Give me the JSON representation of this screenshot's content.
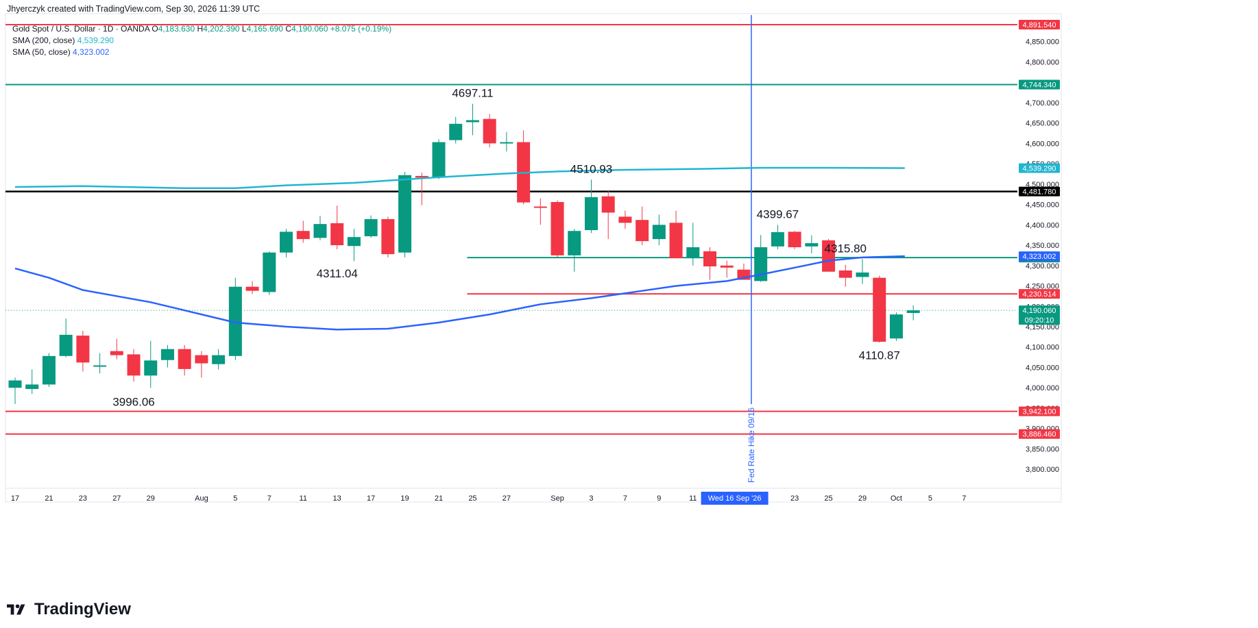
{
  "header": {
    "text": "Jhyerczyk created with TradingView.com, Sep 30, 2026 11:39 UTC"
  },
  "legend": {
    "symbol": "Gold Spot / U.S. Dollar · 1D · OANDA",
    "o_label": "O",
    "o": "4,183.630",
    "h_label": "H",
    "h": "4,202.390",
    "l_label": "L",
    "l": "4,165.690",
    "c_label": "C",
    "c": "4,190.060",
    "change": "+8.075 (+0.19%)",
    "sma200_label": "SMA (200, close)",
    "sma200_value": "4,539.290",
    "sma50_label": "SMA (50, close)",
    "sma50_value": "4,323.002"
  },
  "brand": {
    "name": "TradingView"
  },
  "colors": {
    "up": "#089981",
    "down": "#f23645",
    "sma200": "#22b5d0",
    "sma50": "#2962ff",
    "fed_line": "#2962ff",
    "red_level": "#f23645",
    "green_level": "#089981",
    "black_level": "#000000"
  },
  "chart_data": {
    "type": "candlestick",
    "symbol": "XAUUSD",
    "timeframe": "1D",
    "ylim": [
      3770,
      4915
    ],
    "y_ticks": [
      3800,
      3850,
      3900,
      3950,
      4000,
      4050,
      4100,
      4150,
      4200,
      4250,
      4300,
      4350,
      4400,
      4450,
      4500,
      4550,
      4600,
      4650,
      4700,
      4750,
      4800,
      4850
    ],
    "y_tick_labels": [
      "3,800.000",
      "3,850.000",
      "3,900.000",
      "3,950.000",
      "4,000.000",
      "4,050.000",
      "4,100.000",
      "4,150.000",
      "4,200.000",
      "4,250.000",
      "4,300.000",
      "4,350.000",
      "4,400.000",
      "4,450.000",
      "4,500.000",
      "4,550.000",
      "4,600.000",
      "4,650.000",
      "4,700.000",
      "4,750.000",
      "4,800.000",
      "4,850.000"
    ],
    "x_labels": [
      {
        "i": 0,
        "text": "17"
      },
      {
        "i": 2,
        "text": "21"
      },
      {
        "i": 4,
        "text": "23"
      },
      {
        "i": 6,
        "text": "27"
      },
      {
        "i": 8,
        "text": "29"
      },
      {
        "i": 11,
        "text": "Aug"
      },
      {
        "i": 13,
        "text": "5"
      },
      {
        "i": 15,
        "text": "7"
      },
      {
        "i": 17,
        "text": "11"
      },
      {
        "i": 19,
        "text": "13"
      },
      {
        "i": 21,
        "text": "17"
      },
      {
        "i": 23,
        "text": "19"
      },
      {
        "i": 25,
        "text": "21"
      },
      {
        "i": 27,
        "text": "25"
      },
      {
        "i": 29,
        "text": "27"
      },
      {
        "i": 32,
        "text": "Sep"
      },
      {
        "i": 34,
        "text": "3"
      },
      {
        "i": 36,
        "text": "7"
      },
      {
        "i": 38,
        "text": "9"
      },
      {
        "i": 40,
        "text": "11"
      },
      {
        "i": 44,
        "text": "21"
      },
      {
        "i": 46,
        "text": "23"
      },
      {
        "i": 48,
        "text": "25"
      },
      {
        "i": 50,
        "text": "29"
      },
      {
        "i": 52,
        "text": "Oct"
      },
      {
        "i": 54,
        "text": "5"
      },
      {
        "i": 56,
        "text": "7"
      }
    ],
    "x_highlight": {
      "i": 42.5,
      "text": "Wed 16 Sep '26"
    },
    "candles": [
      {
        "o": 4000,
        "h": 4025,
        "l": 3960,
        "c": 4018
      },
      {
        "o": 3997,
        "h": 4045,
        "l": 3985,
        "c": 4008
      },
      {
        "o": 4008,
        "h": 4085,
        "l": 4002,
        "c": 4078
      },
      {
        "o": 4078,
        "h": 4170,
        "l": 4075,
        "c": 4130
      },
      {
        "o": 4128,
        "h": 4140,
        "l": 4040,
        "c": 4062
      },
      {
        "o": 4054,
        "h": 4085,
        "l": 4035,
        "c": 4055
      },
      {
        "o": 4090,
        "h": 4120,
        "l": 4070,
        "c": 4080
      },
      {
        "o": 4082,
        "h": 4095,
        "l": 4015,
        "c": 4030
      },
      {
        "o": 4030,
        "h": 4115,
        "l": 4000,
        "c": 4067
      },
      {
        "o": 4068,
        "h": 4105,
        "l": 4050,
        "c": 4095
      },
      {
        "o": 4095,
        "h": 4105,
        "l": 4030,
        "c": 4046
      },
      {
        "o": 4080,
        "h": 4090,
        "l": 4025,
        "c": 4060
      },
      {
        "o": 4058,
        "h": 4095,
        "l": 4045,
        "c": 4080
      },
      {
        "o": 4078,
        "h": 4270,
        "l": 4068,
        "c": 4248
      },
      {
        "o": 4248,
        "h": 4262,
        "l": 4230,
        "c": 4238
      },
      {
        "o": 4235,
        "h": 4335,
        "l": 4228,
        "c": 4332
      },
      {
        "o": 4332,
        "h": 4390,
        "l": 4320,
        "c": 4383
      },
      {
        "o": 4385,
        "h": 4410,
        "l": 4356,
        "c": 4365
      },
      {
        "o": 4368,
        "h": 4422,
        "l": 4362,
        "c": 4402
      },
      {
        "o": 4404,
        "h": 4447,
        "l": 4340,
        "c": 4350
      },
      {
        "o": 4348,
        "h": 4390,
        "l": 4311,
        "c": 4370
      },
      {
        "o": 4372,
        "h": 4423,
        "l": 4368,
        "c": 4414
      },
      {
        "o": 4414,
        "h": 4420,
        "l": 4320,
        "c": 4328
      },
      {
        "o": 4332,
        "h": 4530,
        "l": 4320,
        "c": 4522
      },
      {
        "o": 4520,
        "h": 4528,
        "l": 4448,
        "c": 4516
      },
      {
        "o": 4518,
        "h": 4610,
        "l": 4512,
        "c": 4603
      },
      {
        "o": 4608,
        "h": 4665,
        "l": 4600,
        "c": 4648
      },
      {
        "o": 4652,
        "h": 4697,
        "l": 4620,
        "c": 4657
      },
      {
        "o": 4660,
        "h": 4672,
        "l": 4590,
        "c": 4600
      },
      {
        "o": 4600,
        "h": 4628,
        "l": 4580,
        "c": 4603
      },
      {
        "o": 4603,
        "h": 4632,
        "l": 4450,
        "c": 4455
      },
      {
        "o": 4445,
        "h": 4465,
        "l": 4400,
        "c": 4442
      },
      {
        "o": 4456,
        "h": 4460,
        "l": 4320,
        "c": 4325
      },
      {
        "o": 4325,
        "h": 4390,
        "l": 4285,
        "c": 4385
      },
      {
        "o": 4387,
        "h": 4511,
        "l": 4380,
        "c": 4468
      },
      {
        "o": 4470,
        "h": 4485,
        "l": 4365,
        "c": 4430
      },
      {
        "o": 4420,
        "h": 4435,
        "l": 4390,
        "c": 4405
      },
      {
        "o": 4412,
        "h": 4445,
        "l": 4350,
        "c": 4360
      },
      {
        "o": 4365,
        "h": 4425,
        "l": 4350,
        "c": 4400
      },
      {
        "o": 4405,
        "h": 4435,
        "l": 4320,
        "c": 4318
      },
      {
        "o": 4318,
        "h": 4405,
        "l": 4300,
        "c": 4345
      },
      {
        "o": 4335,
        "h": 4345,
        "l": 4265,
        "c": 4298
      },
      {
        "o": 4300,
        "h": 4312,
        "l": 4270,
        "c": 4295
      },
      {
        "o": 4290,
        "h": 4305,
        "l": 4265,
        "c": 4265
      },
      {
        "o": 4262,
        "h": 4375,
        "l": 4260,
        "c": 4345
      },
      {
        "o": 4347,
        "h": 4400,
        "l": 4340,
        "c": 4382
      },
      {
        "o": 4383,
        "h": 4385,
        "l": 4340,
        "c": 4345
      },
      {
        "o": 4347,
        "h": 4374,
        "l": 4330,
        "c": 4355
      },
      {
        "o": 4362,
        "h": 4365,
        "l": 4290,
        "c": 4285
      },
      {
        "o": 4288,
        "h": 4302,
        "l": 4248,
        "c": 4270
      },
      {
        "o": 4272,
        "h": 4316,
        "l": 4255,
        "c": 4283
      },
      {
        "o": 4270,
        "h": 4275,
        "l": 4111,
        "c": 4113
      },
      {
        "o": 4121,
        "h": 4185,
        "l": 4115,
        "c": 4180
      },
      {
        "o": 4183.63,
        "h": 4202.39,
        "l": 4165.69,
        "c": 4190.06
      }
    ],
    "sma200": [
      [
        0,
        4493
      ],
      [
        4,
        4495
      ],
      [
        10,
        4490
      ],
      [
        13,
        4490
      ],
      [
        16,
        4497
      ],
      [
        20,
        4503
      ],
      [
        25,
        4517
      ],
      [
        29,
        4526
      ],
      [
        32,
        4531
      ],
      [
        36,
        4535
      ],
      [
        40,
        4537
      ],
      [
        44,
        4540
      ],
      [
        48,
        4540
      ],
      [
        52.5,
        4539.29
      ]
    ],
    "sma50": [
      [
        0,
        4293
      ],
      [
        2,
        4270
      ],
      [
        4,
        4240
      ],
      [
        8,
        4210
      ],
      [
        11,
        4180
      ],
      [
        13,
        4160
      ],
      [
        16,
        4150
      ],
      [
        19,
        4143
      ],
      [
        22,
        4145
      ],
      [
        25,
        4160
      ],
      [
        28,
        4180
      ],
      [
        31,
        4205
      ],
      [
        34,
        4220
      ],
      [
        37,
        4238
      ],
      [
        39,
        4250
      ],
      [
        42,
        4262
      ],
      [
        44,
        4278
      ],
      [
        46,
        4295
      ],
      [
        48,
        4312
      ],
      [
        50,
        4320
      ],
      [
        52.5,
        4323.002
      ]
    ],
    "horizontal_levels": [
      {
        "value": 4891.54,
        "label": "4,891.540",
        "color": "red",
        "from": null,
        "to": null,
        "width": 2
      },
      {
        "value": 4744.34,
        "label": "4,744.340",
        "color": "green",
        "from": null,
        "to": null,
        "width": 2
      },
      {
        "value": 4481.78,
        "label": "4,481.780",
        "color": "black",
        "from": null,
        "to": null,
        "width": 2.5
      },
      {
        "value": 4319.605,
        "label": "4,319.605",
        "color": "green",
        "from": 27,
        "to": null,
        "width": 2
      },
      {
        "value": 4230.514,
        "label": "4,230.514",
        "color": "red",
        "from": 27,
        "to": null,
        "width": 2
      },
      {
        "value": 3942.1,
        "label": "3,942.100",
        "color": "red",
        "from": null,
        "to": null,
        "width": 2
      },
      {
        "value": 3886.46,
        "label": "3,886.460",
        "color": "red",
        "from": null,
        "to": null,
        "width": 2
      }
    ],
    "price_tags": [
      {
        "value": 4539.29,
        "label": "4,539.290",
        "color": "sma200"
      },
      {
        "value": 4323.002,
        "label": "4,323.002",
        "color": "sma50"
      },
      {
        "value": 4190.06,
        "label": "4,190.060",
        "sub": "09:20:10",
        "color": "up"
      }
    ],
    "current_price": 4190.06,
    "vertical_marker": {
      "i": 43,
      "label": "Fed Rate Hike 09/16"
    },
    "annotations": [
      {
        "i": 27,
        "value": 4697.11,
        "text": "4697.11",
        "pos": "above"
      },
      {
        "i": 34,
        "value": 4510.93,
        "text": "4510.93",
        "pos": "above"
      },
      {
        "i": 45,
        "value": 4399.67,
        "text": "4399.67",
        "pos": "above"
      },
      {
        "i": 49,
        "value": 4315.8,
        "text": "4315.80",
        "pos": "above"
      },
      {
        "i": 19,
        "value": 4311.04,
        "text": "4311.04",
        "pos": "below"
      },
      {
        "i": 7,
        "value": 3996.06,
        "text": "3996.06",
        "pos": "below"
      },
      {
        "i": 51,
        "value": 4110.87,
        "text": "4110.87",
        "pos": "below"
      }
    ]
  }
}
